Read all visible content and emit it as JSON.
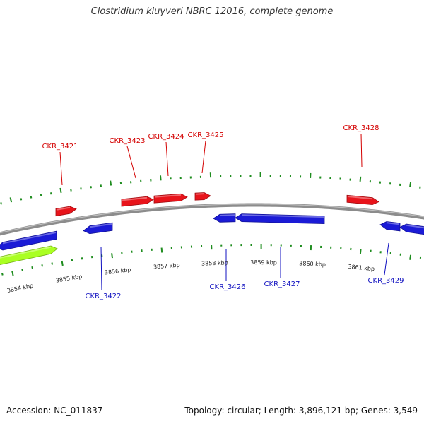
{
  "header": {
    "title": "Clostridium kluyveri NBRC 12016, complete genome"
  },
  "footer": {
    "accession": "Accession: NC_011837",
    "summary": "Topology: circular; Length: 3,896,121 bp; Genes: 3,549"
  },
  "colors": {
    "forward_gene": "#e8141b",
    "reverse_gene": "#1b1bd6",
    "rna_feature": "#aaff22",
    "forward_label": "#d40000",
    "reverse_label": "#1010c0",
    "tick": "#1e8c1e",
    "backbone": "#8c8c8c"
  },
  "chart_data": {
    "type": "genome_map",
    "title": "Clostridium kluyveri NBRC 12016, complete genome",
    "kbp_labels": [
      "3854 kbp",
      "3855 kbp",
      "3856 kbp",
      "3857 kbp",
      "3858 kbp",
      "3859 kbp",
      "3860 kbp",
      "3861 kbp"
    ],
    "forward_genes": [
      {
        "label": "CKR_3421"
      },
      {
        "label": "CKR_3423"
      },
      {
        "label": "CKR_3424"
      },
      {
        "label": "CKR_3425"
      },
      {
        "label": "CKR_3428"
      }
    ],
    "reverse_genes": [
      {
        "label": "CKR_3422"
      },
      {
        "label": "CKR_3426"
      },
      {
        "label": "CKR_3427"
      },
      {
        "label": "CKR_3429"
      }
    ]
  }
}
